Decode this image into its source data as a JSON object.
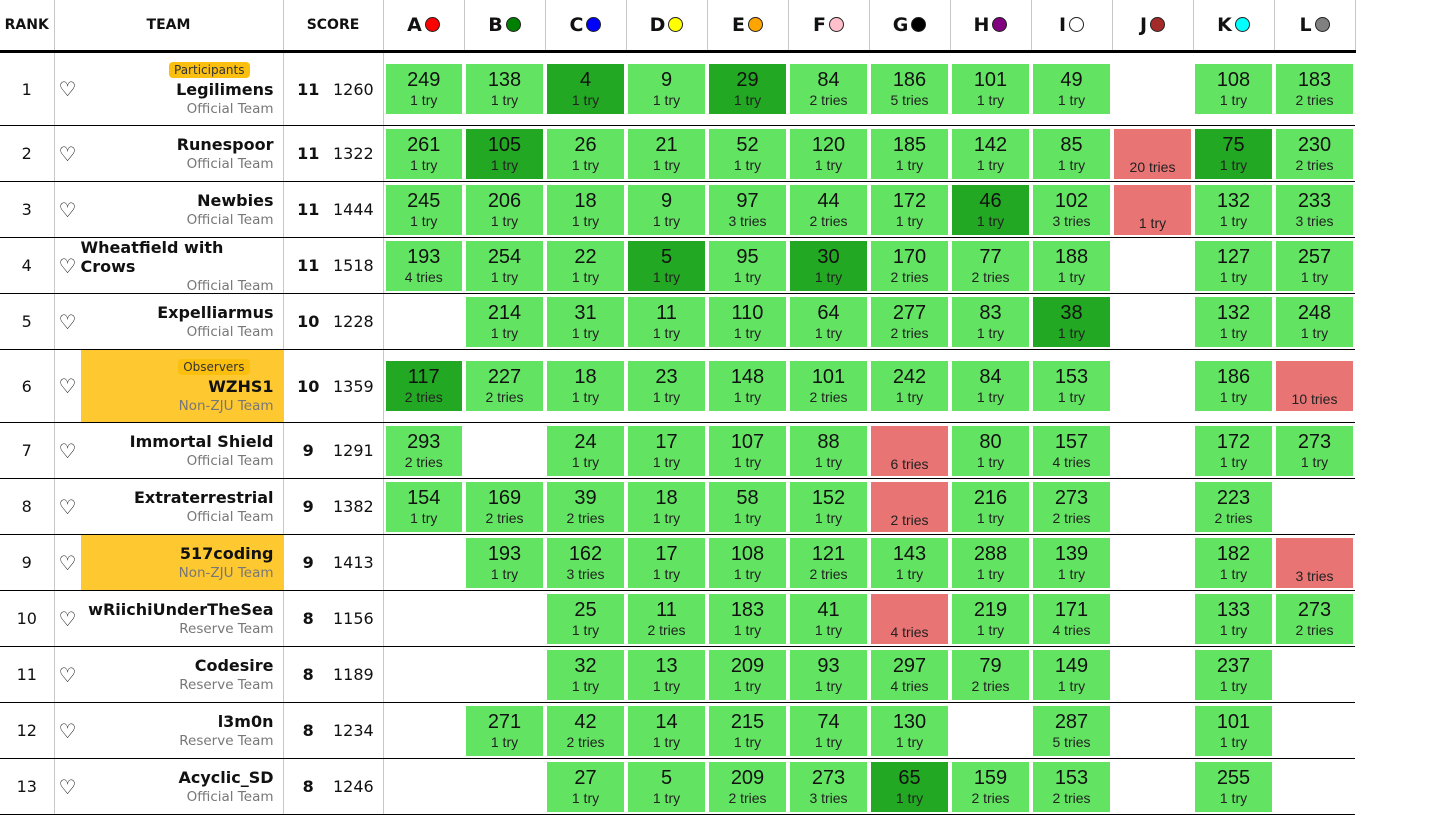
{
  "header": {
    "rank": "RANK",
    "team": "TEAM",
    "score": "SCORE"
  },
  "problems": [
    {
      "label": "A",
      "color": "#ff0000"
    },
    {
      "label": "B",
      "color": "#008000"
    },
    {
      "label": "C",
      "color": "#0000ff"
    },
    {
      "label": "D",
      "color": "#ffff00"
    },
    {
      "label": "E",
      "color": "#ffa500"
    },
    {
      "label": "F",
      "color": "#ffc0cb"
    },
    {
      "label": "G",
      "color": "#000000"
    },
    {
      "label": "H",
      "color": "#800080"
    },
    {
      "label": "I",
      "color": "#ffffff"
    },
    {
      "label": "J",
      "color": "#a52a2a"
    },
    {
      "label": "K",
      "color": "#00ffff"
    },
    {
      "label": "L",
      "color": "#808080"
    }
  ],
  "colors": {
    "accepted": "#62e462",
    "first_blood": "#22a822",
    "failed": "#e87474",
    "highlight": "#fdc830"
  },
  "rows": [
    {
      "rank": "1",
      "badge": "Participants",
      "name": "Legilimens",
      "group": "Official Team",
      "hl": false,
      "solved": "11",
      "penalty": "1260",
      "cells": [
        [
          "249",
          "1 try",
          "ac"
        ],
        [
          "138",
          "1 try",
          "ac"
        ],
        [
          "4",
          "1 try",
          "fb"
        ],
        [
          "9",
          "1 try",
          "ac"
        ],
        [
          "29",
          "1 try",
          "fb"
        ],
        [
          "84",
          "2 tries",
          "ac"
        ],
        [
          "186",
          "5 tries",
          "ac"
        ],
        [
          "101",
          "1 try",
          "ac"
        ],
        [
          "49",
          "1 try",
          "ac"
        ],
        null,
        [
          "108",
          "1 try",
          "ac"
        ],
        [
          "183",
          "2 tries",
          "ac"
        ]
      ]
    },
    {
      "rank": "2",
      "name": "Runespoor",
      "group": "Official Team",
      "hl": false,
      "solved": "11",
      "penalty": "1322",
      "cells": [
        [
          "261",
          "1 try",
          "ac"
        ],
        [
          "105",
          "1 try",
          "fb"
        ],
        [
          "26",
          "1 try",
          "ac"
        ],
        [
          "21",
          "1 try",
          "ac"
        ],
        [
          "52",
          "1 try",
          "ac"
        ],
        [
          "120",
          "1 try",
          "ac"
        ],
        [
          "185",
          "1 try",
          "ac"
        ],
        [
          "142",
          "1 try",
          "ac"
        ],
        [
          "85",
          "1 try",
          "ac"
        ],
        [
          "",
          "20 tries",
          "fail"
        ],
        [
          "75",
          "1 try",
          "fb"
        ],
        [
          "230",
          "2 tries",
          "ac"
        ]
      ]
    },
    {
      "rank": "3",
      "name": "Newbies",
      "group": "Official Team",
      "hl": false,
      "solved": "11",
      "penalty": "1444",
      "cells": [
        [
          "245",
          "1 try",
          "ac"
        ],
        [
          "206",
          "1 try",
          "ac"
        ],
        [
          "18",
          "1 try",
          "ac"
        ],
        [
          "9",
          "1 try",
          "ac"
        ],
        [
          "97",
          "3 tries",
          "ac"
        ],
        [
          "44",
          "2 tries",
          "ac"
        ],
        [
          "172",
          "1 try",
          "ac"
        ],
        [
          "46",
          "1 try",
          "fb"
        ],
        [
          "102",
          "3 tries",
          "ac"
        ],
        [
          "",
          "1 try",
          "fail"
        ],
        [
          "132",
          "1 try",
          "ac"
        ],
        [
          "233",
          "3 tries",
          "ac"
        ]
      ]
    },
    {
      "rank": "4",
      "name": "Wheatfield with Crows",
      "group": "Official Team",
      "hl": false,
      "solved": "11",
      "penalty": "1518",
      "cells": [
        [
          "193",
          "4 tries",
          "ac"
        ],
        [
          "254",
          "1 try",
          "ac"
        ],
        [
          "22",
          "1 try",
          "ac"
        ],
        [
          "5",
          "1 try",
          "fb"
        ],
        [
          "95",
          "1 try",
          "ac"
        ],
        [
          "30",
          "1 try",
          "fb"
        ],
        [
          "170",
          "2 tries",
          "ac"
        ],
        [
          "77",
          "2 tries",
          "ac"
        ],
        [
          "188",
          "1 try",
          "ac"
        ],
        null,
        [
          "127",
          "1 try",
          "ac"
        ],
        [
          "257",
          "1 try",
          "ac"
        ]
      ]
    },
    {
      "rank": "5",
      "name": "Expelliarmus",
      "group": "Official Team",
      "hl": false,
      "solved": "10",
      "penalty": "1228",
      "cells": [
        null,
        [
          "214",
          "1 try",
          "ac"
        ],
        [
          "31",
          "1 try",
          "ac"
        ],
        [
          "11",
          "1 try",
          "ac"
        ],
        [
          "110",
          "1 try",
          "ac"
        ],
        [
          "64",
          "1 try",
          "ac"
        ],
        [
          "277",
          "2 tries",
          "ac"
        ],
        [
          "83",
          "1 try",
          "ac"
        ],
        [
          "38",
          "1 try",
          "fb"
        ],
        null,
        [
          "132",
          "1 try",
          "ac"
        ],
        [
          "248",
          "1 try",
          "ac"
        ]
      ]
    },
    {
      "rank": "6",
      "badge": "Observers",
      "name": "WZHS1",
      "group": "Non-ZJU Team",
      "hl": true,
      "solved": "10",
      "penalty": "1359",
      "cells": [
        [
          "117",
          "2 tries",
          "fb"
        ],
        [
          "227",
          "2 tries",
          "ac"
        ],
        [
          "18",
          "1 try",
          "ac"
        ],
        [
          "23",
          "1 try",
          "ac"
        ],
        [
          "148",
          "1 try",
          "ac"
        ],
        [
          "101",
          "2 tries",
          "ac"
        ],
        [
          "242",
          "1 try",
          "ac"
        ],
        [
          "84",
          "1 try",
          "ac"
        ],
        [
          "153",
          "1 try",
          "ac"
        ],
        null,
        [
          "186",
          "1 try",
          "ac"
        ],
        [
          "",
          "10 tries",
          "fail"
        ]
      ]
    },
    {
      "rank": "7",
      "name": "Immortal Shield",
      "group": "Official Team",
      "hl": false,
      "solved": "9",
      "penalty": "1291",
      "cells": [
        [
          "293",
          "2 tries",
          "ac"
        ],
        null,
        [
          "24",
          "1 try",
          "ac"
        ],
        [
          "17",
          "1 try",
          "ac"
        ],
        [
          "107",
          "1 try",
          "ac"
        ],
        [
          "88",
          "1 try",
          "ac"
        ],
        [
          "",
          "6 tries",
          "fail"
        ],
        [
          "80",
          "1 try",
          "ac"
        ],
        [
          "157",
          "4 tries",
          "ac"
        ],
        null,
        [
          "172",
          "1 try",
          "ac"
        ],
        [
          "273",
          "1 try",
          "ac"
        ]
      ]
    },
    {
      "rank": "8",
      "name": "Extraterrestrial",
      "group": "Official Team",
      "hl": false,
      "solved": "9",
      "penalty": "1382",
      "cells": [
        [
          "154",
          "1 try",
          "ac"
        ],
        [
          "169",
          "2 tries",
          "ac"
        ],
        [
          "39",
          "2 tries",
          "ac"
        ],
        [
          "18",
          "1 try",
          "ac"
        ],
        [
          "58",
          "1 try",
          "ac"
        ],
        [
          "152",
          "1 try",
          "ac"
        ],
        [
          "",
          "2 tries",
          "fail"
        ],
        [
          "216",
          "1 try",
          "ac"
        ],
        [
          "273",
          "2 tries",
          "ac"
        ],
        null,
        [
          "223",
          "2 tries",
          "ac"
        ],
        null
      ]
    },
    {
      "rank": "9",
      "name": "517coding",
      "group": "Non-ZJU Team",
      "hl": true,
      "solved": "9",
      "penalty": "1413",
      "cells": [
        null,
        [
          "193",
          "1 try",
          "ac"
        ],
        [
          "162",
          "3 tries",
          "ac"
        ],
        [
          "17",
          "1 try",
          "ac"
        ],
        [
          "108",
          "1 try",
          "ac"
        ],
        [
          "121",
          "2 tries",
          "ac"
        ],
        [
          "143",
          "1 try",
          "ac"
        ],
        [
          "288",
          "1 try",
          "ac"
        ],
        [
          "139",
          "1 try",
          "ac"
        ],
        null,
        [
          "182",
          "1 try",
          "ac"
        ],
        [
          "",
          "3 tries",
          "fail"
        ]
      ]
    },
    {
      "rank": "10",
      "name": "wRiichiUnderTheSea",
      "group": "Reserve Team",
      "hl": false,
      "solved": "8",
      "penalty": "1156",
      "cells": [
        null,
        null,
        [
          "25",
          "1 try",
          "ac"
        ],
        [
          "11",
          "2 tries",
          "ac"
        ],
        [
          "183",
          "1 try",
          "ac"
        ],
        [
          "41",
          "1 try",
          "ac"
        ],
        [
          "",
          "4 tries",
          "fail"
        ],
        [
          "219",
          "1 try",
          "ac"
        ],
        [
          "171",
          "4 tries",
          "ac"
        ],
        null,
        [
          "133",
          "1 try",
          "ac"
        ],
        [
          "273",
          "2 tries",
          "ac"
        ]
      ]
    },
    {
      "rank": "11",
      "name": "Codesire",
      "group": "Reserve Team",
      "hl": false,
      "solved": "8",
      "penalty": "1189",
      "cells": [
        null,
        null,
        [
          "32",
          "1 try",
          "ac"
        ],
        [
          "13",
          "1 try",
          "ac"
        ],
        [
          "209",
          "1 try",
          "ac"
        ],
        [
          "93",
          "1 try",
          "ac"
        ],
        [
          "297",
          "4 tries",
          "ac"
        ],
        [
          "79",
          "2 tries",
          "ac"
        ],
        [
          "149",
          "1 try",
          "ac"
        ],
        null,
        [
          "237",
          "1 try",
          "ac"
        ],
        null
      ]
    },
    {
      "rank": "12",
      "name": "l3m0n",
      "group": "Reserve Team",
      "hl": false,
      "solved": "8",
      "penalty": "1234",
      "cells": [
        null,
        [
          "271",
          "1 try",
          "ac"
        ],
        [
          "42",
          "2 tries",
          "ac"
        ],
        [
          "14",
          "1 try",
          "ac"
        ],
        [
          "215",
          "1 try",
          "ac"
        ],
        [
          "74",
          "1 try",
          "ac"
        ],
        [
          "130",
          "1 try",
          "ac"
        ],
        null,
        [
          "287",
          "5 tries",
          "ac"
        ],
        null,
        [
          "101",
          "1 try",
          "ac"
        ],
        null
      ]
    },
    {
      "rank": "13",
      "name": "Acyclic_SD",
      "group": "Official Team",
      "hl": false,
      "solved": "8",
      "penalty": "1246",
      "cells": [
        null,
        null,
        [
          "27",
          "1 try",
          "ac"
        ],
        [
          "5",
          "1 try",
          "ac"
        ],
        [
          "209",
          "2 tries",
          "ac"
        ],
        [
          "273",
          "3 tries",
          "ac"
        ],
        [
          "65",
          "1 try",
          "fb"
        ],
        [
          "159",
          "2 tries",
          "ac"
        ],
        [
          "153",
          "2 tries",
          "ac"
        ],
        null,
        [
          "255",
          "1 try",
          "ac"
        ],
        null
      ]
    }
  ]
}
